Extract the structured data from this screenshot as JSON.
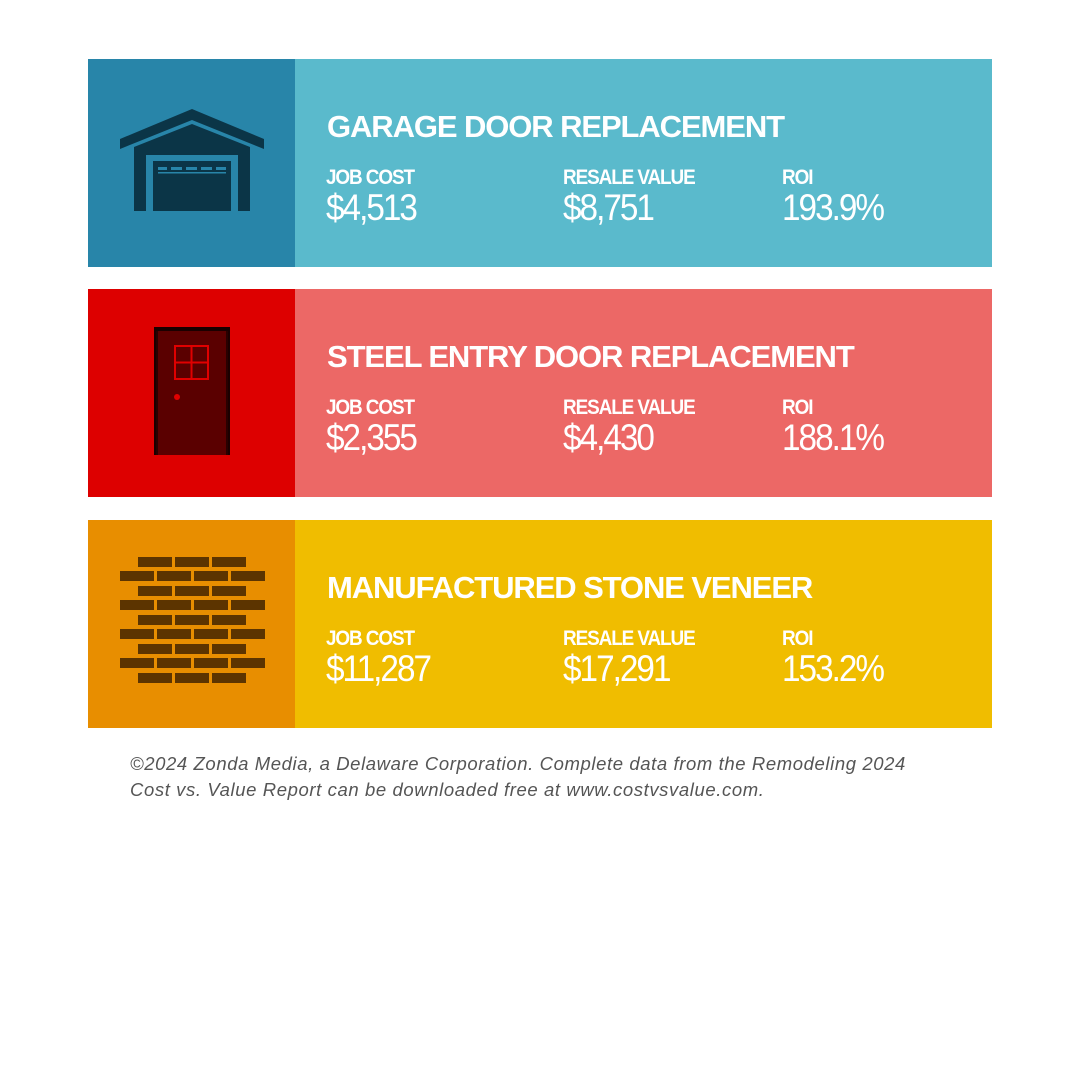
{
  "cards": [
    {
      "title": "GARAGE DOOR REPLACEMENT",
      "job_cost_label": "JOB COST",
      "job_cost": "$4,513",
      "resale_label": "RESALE VALUE",
      "resale": "$8,751",
      "roi_label": "ROI",
      "roi": "193.9%",
      "icon": "garage-icon",
      "icon_bg": "#2885A9",
      "bg": "#5ABACC"
    },
    {
      "title": "STEEL ENTRY DOOR REPLACEMENT",
      "job_cost_label": "JOB COST",
      "job_cost": "$2,355",
      "resale_label": "RESALE VALUE",
      "resale": "$4,430",
      "roi_label": "ROI",
      "roi": "188.1%",
      "icon": "door-icon",
      "icon_bg": "#DD0000",
      "bg": "#EC6866"
    },
    {
      "title": "MANUFACTURED STONE VENEER",
      "job_cost_label": "JOB COST",
      "job_cost": "$11,287",
      "resale_label": "RESALE VALUE",
      "resale": "$17,291",
      "roi_label": "ROI",
      "roi": "153.2%",
      "icon": "brick-wall-icon",
      "icon_bg": "#E88E00",
      "bg": "#F0BD00"
    }
  ],
  "footer": {
    "line1": "©2024 Zonda Media, a Delaware Corporation. Complete data from the Remodeling 2024",
    "line2": "Cost vs. Value Report can be downloaded free at www.costvsvalue.com."
  }
}
